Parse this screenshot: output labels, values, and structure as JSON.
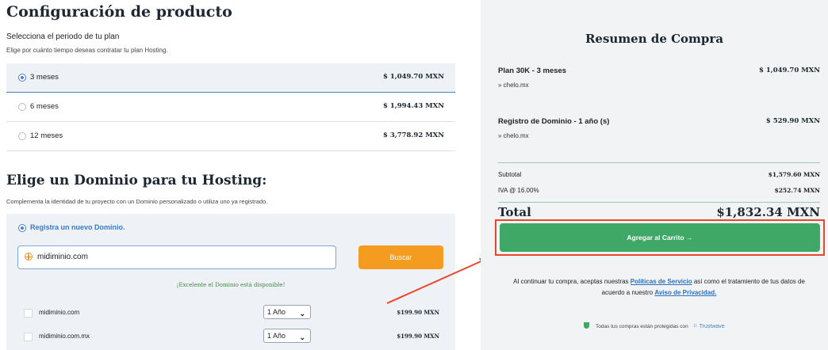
{
  "config": {
    "title": "Configuración de producto",
    "period_title": "Selecciona el periodo de tu plan",
    "period_desc": "Elige por cuánto tiempo deseas contratar tu plan Hosting.",
    "plans": [
      {
        "label": "3 meses",
        "price": "$ 1,049.70 MXN",
        "selected": true
      },
      {
        "label": "6 meses",
        "price": "$ 1,994.43 MXN",
        "selected": false
      },
      {
        "label": "12 meses",
        "price": "$ 3,778.92 MXN",
        "selected": false
      }
    ]
  },
  "domain": {
    "title": "Elige un Dominio para tu Hosting:",
    "desc": "Complementa la identidad de tu proyecto con un Dominio personalizado o utiliza uno ya registrado.",
    "register_option": "Registra un nuevo Dominio.",
    "search_value": "midiminio.com",
    "search_button": "Buscar",
    "available_msg": "¡Excelente el Dominio está disponible!",
    "results": [
      {
        "name": "midiminio.com",
        "period": "1 Año",
        "price": "$199.90 MXN"
      },
      {
        "name": "midiminio.com.mx",
        "period": "1 Año",
        "price": "$199.90 MXN"
      }
    ]
  },
  "summary": {
    "title": "Resumen de Compra",
    "items": [
      {
        "name": "Plan 30K - 3 meses",
        "price": "$ 1,049.70 MXN",
        "domain": "» chelo.mx"
      },
      {
        "name": "Registro de Dominio - 1 año (s)",
        "price": "$ 529.90 MXN",
        "domain": "» chelo.mx"
      }
    ],
    "subtotal_label": "Subtotal",
    "subtotal_value": "$1,579.60 MXN",
    "tax_label": "IVA @ 16.00%",
    "tax_value": "$252.74 MXN",
    "total_label": "Total",
    "total_value": "$1,832.34 MXN",
    "cart_button": "Agregar al Carrito →",
    "terms_prefix": "Al continuar tu compra, aceptas nuestras",
    "terms_link": "Políticas de Servicio",
    "terms_middle": "así como el tratamiento de tus datos de acuerdo a nuestro",
    "privacy_link": "Aviso de Privacidad.",
    "secure_text": "Todas tus compras están protegidas con",
    "trust_brand": "Trustwave"
  },
  "colors": {
    "accent_blue": "#4a7fc6",
    "search_orange": "#f39c1f",
    "cart_green": "#3fa866",
    "highlight_red": "#e8472a"
  }
}
